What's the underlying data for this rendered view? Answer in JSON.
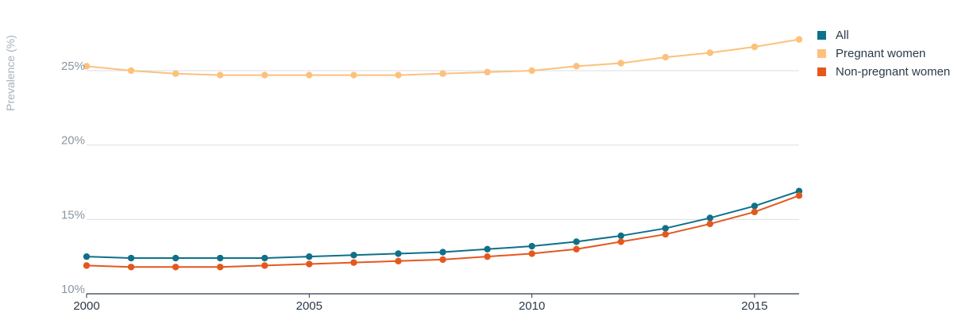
{
  "chart_data": {
    "type": "line",
    "title": "",
    "xlabel": "",
    "ylabel": "Prevalence (%)",
    "x": [
      2000,
      2001,
      2002,
      2003,
      2004,
      2005,
      2006,
      2007,
      2008,
      2009,
      2010,
      2011,
      2012,
      2013,
      2014,
      2015,
      2016
    ],
    "xticks": [
      2000,
      2005,
      2010,
      2015
    ],
    "xtick_labels": [
      "2000",
      "2005",
      "2010",
      "2015"
    ],
    "yticks": [
      10,
      15,
      20,
      25
    ],
    "ytick_labels": [
      "10%",
      "15%",
      "20%",
      "25%"
    ],
    "ylim": [
      10,
      29
    ],
    "xlim": [
      2000,
      2016
    ],
    "grid": "horizontal",
    "legend_position": "top-right",
    "series": [
      {
        "name": "All",
        "color": "#0f7089",
        "values": [
          12.5,
          12.4,
          12.4,
          12.4,
          12.4,
          12.5,
          12.6,
          12.7,
          12.8,
          13.0,
          13.2,
          13.5,
          13.9,
          14.4,
          15.1,
          15.9,
          16.9
        ]
      },
      {
        "name": "Pregnant women",
        "color": "#fcc17c",
        "values": [
          25.3,
          25.0,
          24.8,
          24.7,
          24.7,
          24.7,
          24.7,
          24.7,
          24.8,
          24.9,
          25.0,
          25.3,
          25.5,
          25.9,
          26.2,
          26.6,
          27.1
        ]
      },
      {
        "name": "Non-pregnant women",
        "color": "#e4581f",
        "values": [
          11.9,
          11.8,
          11.8,
          11.8,
          11.9,
          12.0,
          12.1,
          12.2,
          12.3,
          12.5,
          12.7,
          13.0,
          13.5,
          14.0,
          14.7,
          15.5,
          16.6
        ]
      }
    ]
  },
  "colors": {
    "grid": "#d9dee3",
    "axis": "#2b3a4a"
  }
}
